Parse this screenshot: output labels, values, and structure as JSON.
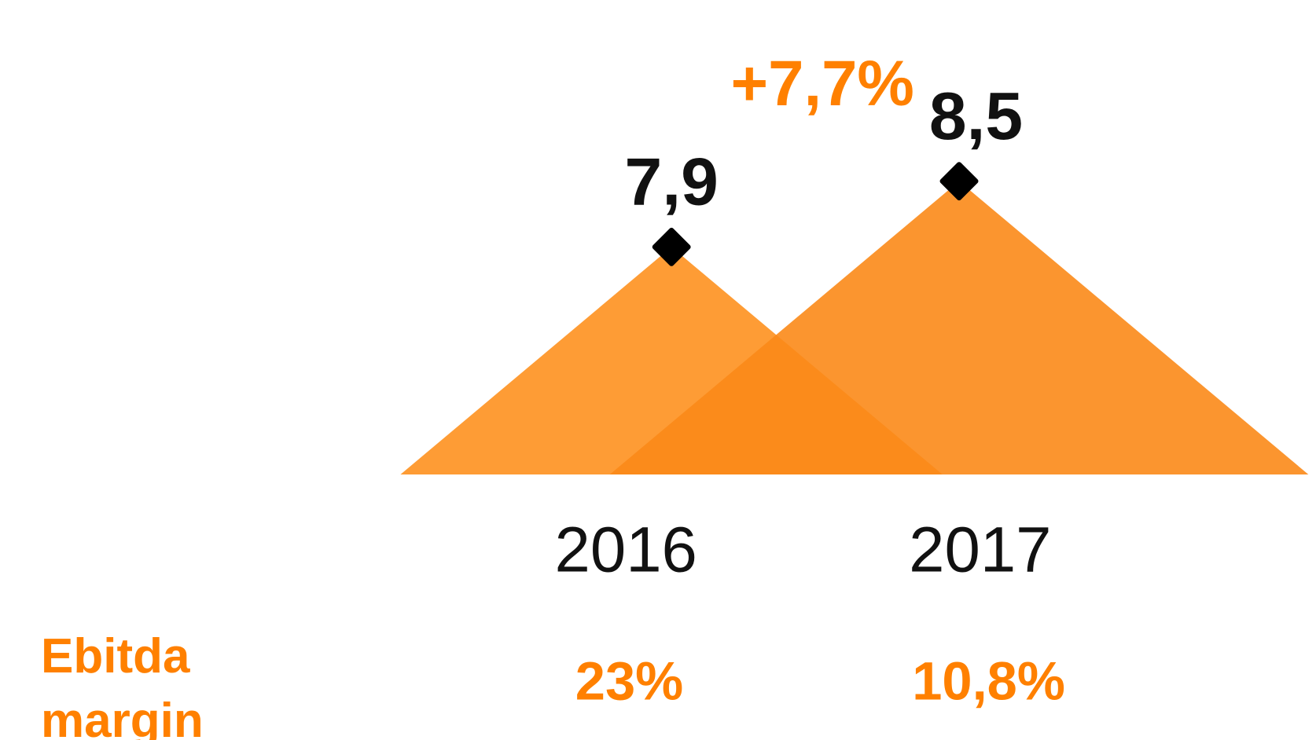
{
  "chart_data": {
    "type": "mountain",
    "categories": [
      "2016",
      "2017"
    ],
    "values": [
      7.9,
      8.5
    ],
    "value_labels": [
      "7,9",
      "8,5"
    ],
    "colors": [
      "#fe9c35",
      "#fb8a18"
    ],
    "annotation": "+7,7%",
    "margin_label": "Ebitda margin",
    "margins": [
      "23%",
      "10,8%"
    ]
  }
}
